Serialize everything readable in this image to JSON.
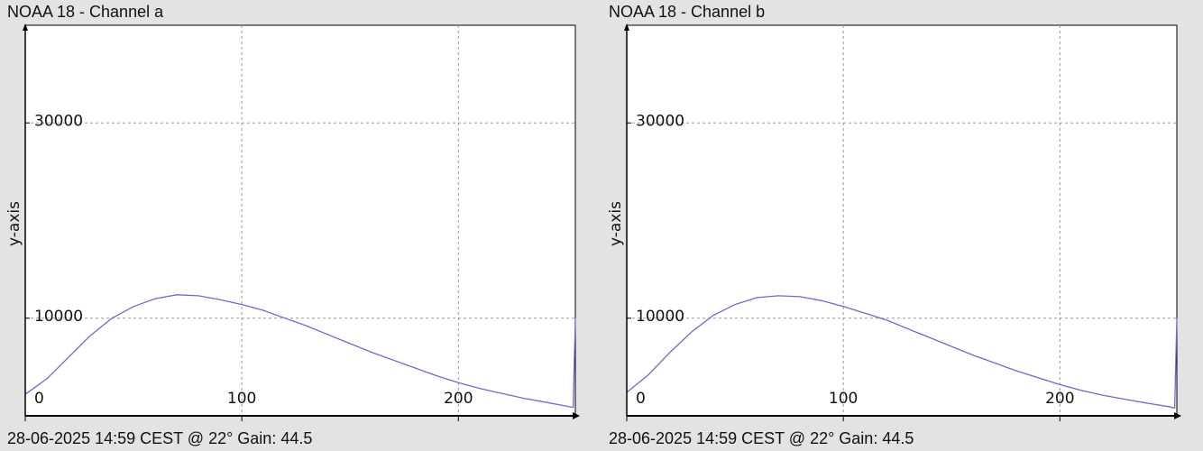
{
  "chart_data": [
    {
      "type": "line",
      "title": "NOAA 18 - Channel a",
      "ylabel": "y-axis",
      "caption": "28-06-2025 14:59 CEST @ 22° Gain: 44.5",
      "x": [
        0,
        10,
        20,
        30,
        40,
        50,
        60,
        70,
        80,
        90,
        100,
        110,
        120,
        130,
        140,
        150,
        160,
        170,
        180,
        190,
        200,
        210,
        220,
        230,
        240,
        250,
        253,
        254
      ],
      "series": [
        {
          "name": "Channel a",
          "color": "#6a6ad2",
          "values": [
            2200,
            3800,
            6000,
            8200,
            10000,
            11200,
            12000,
            12400,
            12300,
            11900,
            11400,
            10800,
            10000,
            9200,
            8300,
            7400,
            6500,
            5700,
            4900,
            4100,
            3400,
            2800,
            2300,
            1800,
            1400,
            1000,
            850,
            10000
          ]
        }
      ],
      "xlim": [
        0,
        254
      ],
      "ylim": [
        0,
        40000
      ],
      "xticks": [
        0,
        100,
        200
      ],
      "yticks": [
        10000,
        30000
      ],
      "grid": true
    },
    {
      "type": "line",
      "title": "NOAA 18 - Channel b",
      "ylabel": "y-axis",
      "caption": "28-06-2025 14:59 CEST @ 22° Gain: 44.5",
      "x": [
        0,
        10,
        20,
        30,
        40,
        50,
        60,
        70,
        80,
        90,
        100,
        110,
        120,
        130,
        140,
        150,
        160,
        170,
        180,
        190,
        200,
        210,
        220,
        230,
        240,
        250,
        253,
        254
      ],
      "series": [
        {
          "name": "Channel b",
          "color": "#6a6ad2",
          "values": [
            2400,
            4200,
            6500,
            8600,
            10300,
            11400,
            12100,
            12300,
            12200,
            11800,
            11200,
            10500,
            9800,
            8900,
            8000,
            7100,
            6200,
            5400,
            4600,
            3900,
            3200,
            2600,
            2100,
            1700,
            1300,
            950,
            800,
            10000
          ]
        }
      ],
      "xlim": [
        0,
        254
      ],
      "ylim": [
        0,
        40000
      ],
      "xticks": [
        0,
        100,
        200
      ],
      "yticks": [
        10000,
        30000
      ],
      "grid": true
    }
  ]
}
